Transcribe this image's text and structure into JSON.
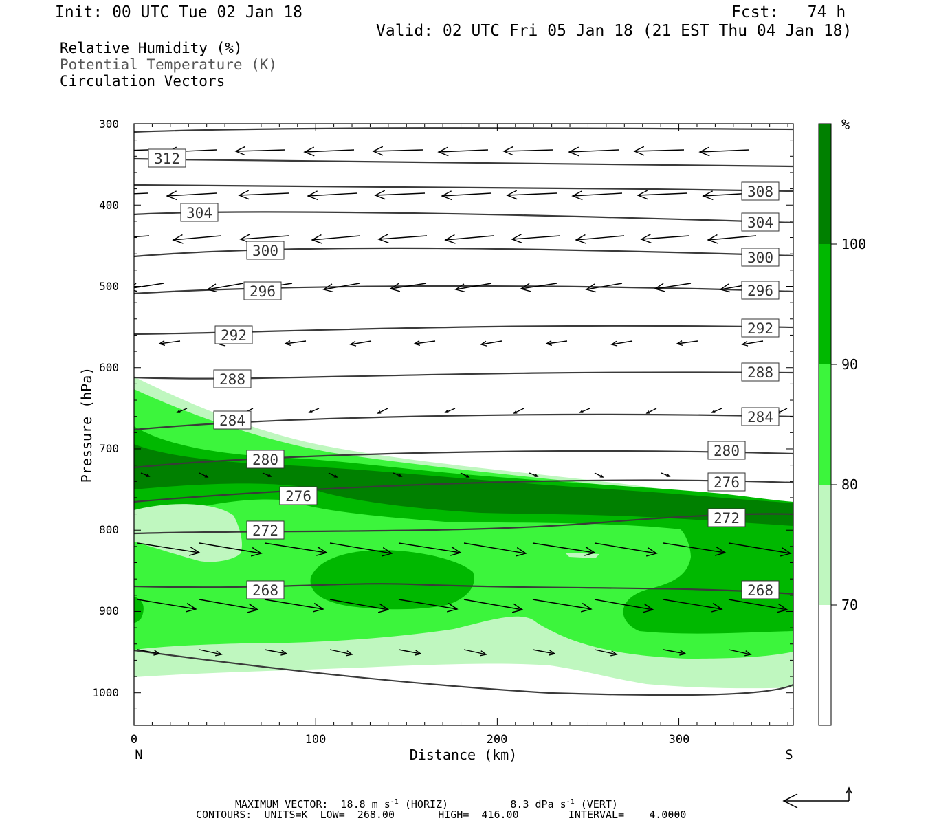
{
  "header": {
    "init": "Init: 00 UTC Tue 02 Jan 18",
    "fcst": "Fcst:   74 h",
    "valid": "Valid: 02 UTC Fri 05 Jan 18 (21 EST Thu 04 Jan 18)"
  },
  "legend_lines": [
    "Relative Humidity (%)",
    "Potential Temperature (K)",
    "Circulation Vectors"
  ],
  "colors": {
    "rh70": "#bff7bf",
    "rh80": "#3cf53c",
    "rh90": "#00b800",
    "rh100": "#008000",
    "contour": "#3a3a3a"
  },
  "chart_data": {
    "type": "cross-section",
    "xlabel": "Distance (km)",
    "ylabel": "Pressure (hPa)",
    "x_end_labels": {
      "left": "N",
      "right": "S"
    },
    "xlim": [
      0,
      363
    ],
    "ylim": [
      1040,
      300
    ],
    "x_ticks": [
      0,
      100,
      200,
      300
    ],
    "y_ticks": [
      300,
      400,
      500,
      600,
      700,
      800,
      900,
      1000
    ],
    "colorbar": {
      "unit": "%",
      "levels": [
        70,
        80,
        90,
        100
      ]
    },
    "theta_contours": [
      {
        "value": 268,
        "labels": [
          "268",
          "268"
        ]
      },
      {
        "value": 272,
        "labels": [
          "272",
          "272"
        ]
      },
      {
        "value": 276,
        "labels": [
          "276",
          "276"
        ]
      },
      {
        "value": 280,
        "labels": [
          "280",
          "280"
        ]
      },
      {
        "value": 284,
        "labels": [
          "284",
          "284"
        ]
      },
      {
        "value": 288,
        "labels": [
          "288",
          "288"
        ]
      },
      {
        "value": 292,
        "labels": [
          "292",
          "292"
        ]
      },
      {
        "value": 296,
        "labels": [
          "296",
          "296"
        ]
      },
      {
        "value": 300,
        "labels": [
          "300",
          "300"
        ]
      },
      {
        "value": 304,
        "labels": [
          "304",
          "304"
        ]
      },
      {
        "value": 308,
        "labels": [
          "308"
        ]
      },
      {
        "value": 312,
        "labels": [
          "312"
        ]
      }
    ]
  },
  "footer": {
    "max_vector_label": "MAXIMUM VECTOR:",
    "max_vector_horiz": "18.8 m s",
    "horiz_tag": "(HORIZ)",
    "max_vector_vert": "8.3 dPa s",
    "vert_tag": "(VERT)",
    "exponent": "-1",
    "contours_line": "CONTOURS:  UNITS=K  LOW=  268.00       HIGH=  416.00        INTERVAL=    4.0000"
  }
}
